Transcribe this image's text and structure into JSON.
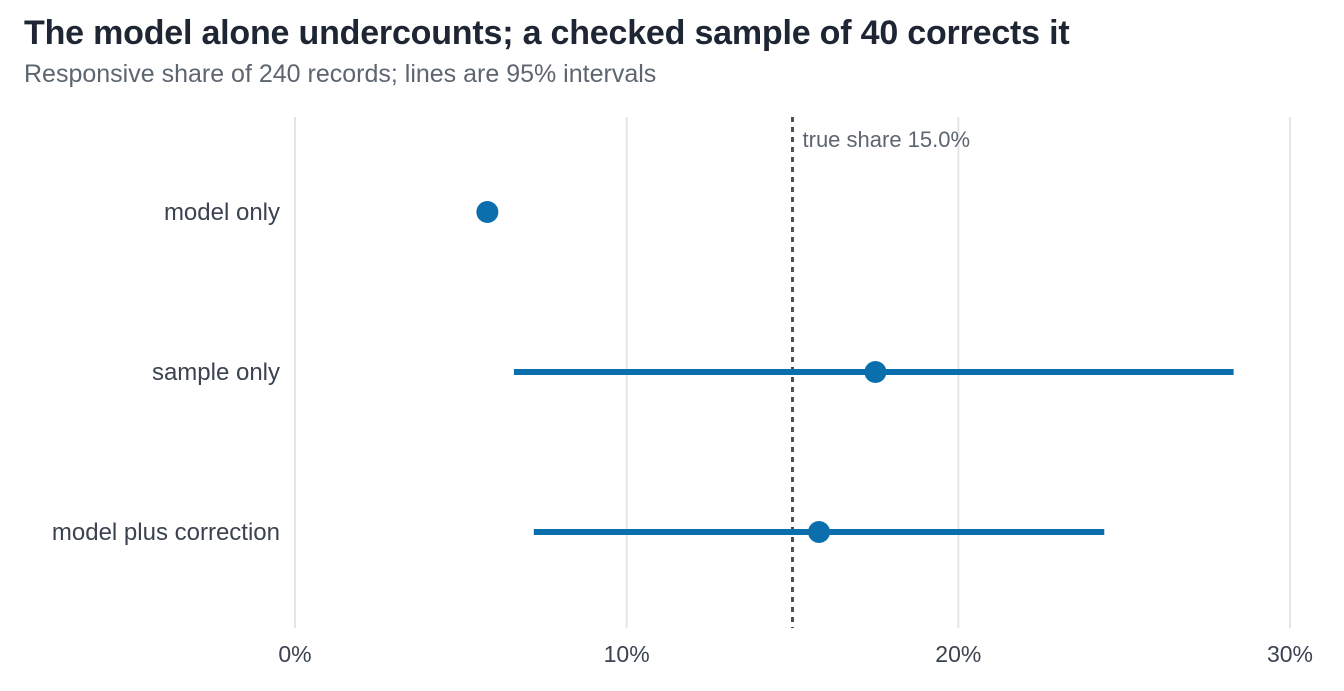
{
  "title": "The model alone undercounts; a checked sample of 40 corrects it",
  "subtitle": "Responsive share of 240 records; lines are 95% intervals",
  "chart_data": {
    "type": "scatter",
    "title": "The model alone undercounts; a checked sample of 40 corrects it",
    "subtitle": "Responsive share of 240 records; lines are 95% intervals",
    "xlabel": "",
    "ylabel": "",
    "xlim": [
      0,
      30
    ],
    "x_ticks": [
      0,
      10,
      20,
      30
    ],
    "x_tick_labels": [
      "0%",
      "10%",
      "20%",
      "30%"
    ],
    "grid": "vertical",
    "legend": "none",
    "color": "#0b6fad",
    "rows": [
      {
        "label": "model only",
        "estimate": 5.8,
        "low": null,
        "high": null
      },
      {
        "label": "sample only",
        "estimate": 17.5,
        "low": 6.6,
        "high": 28.3
      },
      {
        "label": "model plus correction",
        "estimate": 15.8,
        "low": 7.2,
        "high": 24.4
      }
    ],
    "reference": {
      "value": 15.0,
      "label": "true share 15.0%"
    }
  }
}
